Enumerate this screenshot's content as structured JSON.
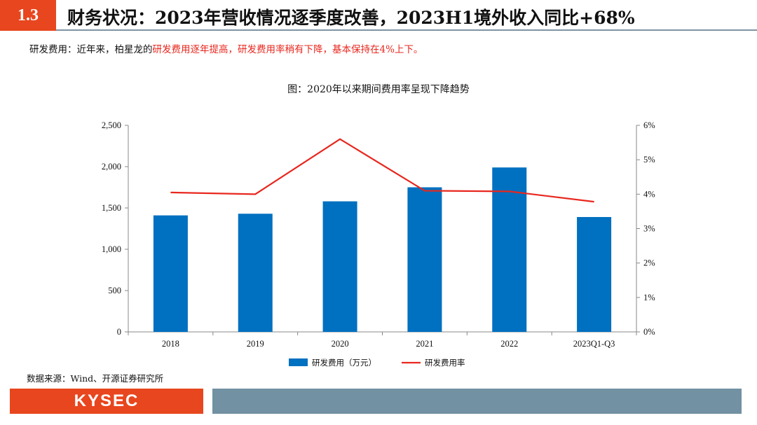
{
  "header": {
    "section_number": "1.3",
    "title": "财务状况：2023年营收情况逐季度改善，2023H1境外收入同比+68%"
  },
  "rd_note": {
    "lead": "研发费用：近年来，柏星龙的",
    "highlight": "研发费用逐年提高，研发费用率稍有下降，基本保持在4%上下。"
  },
  "chart_data": {
    "type": "bar",
    "title": "图：2020年以来期间费用率呈现下降趋势",
    "categories": [
      "2018",
      "2019",
      "2020",
      "2021",
      "2022",
      "2023Q1-Q3"
    ],
    "series": [
      {
        "name": "研发费用（万元）",
        "type": "bar",
        "axis": "left",
        "color": "#0070c0",
        "values": [
          1410,
          1430,
          1580,
          1750,
          1990,
          1390
        ]
      },
      {
        "name": "研发费用率",
        "type": "line",
        "axis": "right",
        "color": "#e8271e",
        "values": [
          4.05,
          4.0,
          5.6,
          4.1,
          4.08,
          3.78
        ]
      }
    ],
    "y_left": {
      "range": [
        0,
        2500
      ],
      "ticks": [
        "0",
        "500",
        "1,000",
        "1,500",
        "2,000",
        "2,500"
      ]
    },
    "y_right": {
      "range": [
        0,
        6
      ],
      "ticks": [
        "0%",
        "1%",
        "2%",
        "3%",
        "4%",
        "5%",
        "6%"
      ]
    },
    "grid": false,
    "legend_position": "bottom"
  },
  "source": "数据来源：Wind、开源证券研究所",
  "footer": {
    "logo_text": "KYSEC"
  }
}
